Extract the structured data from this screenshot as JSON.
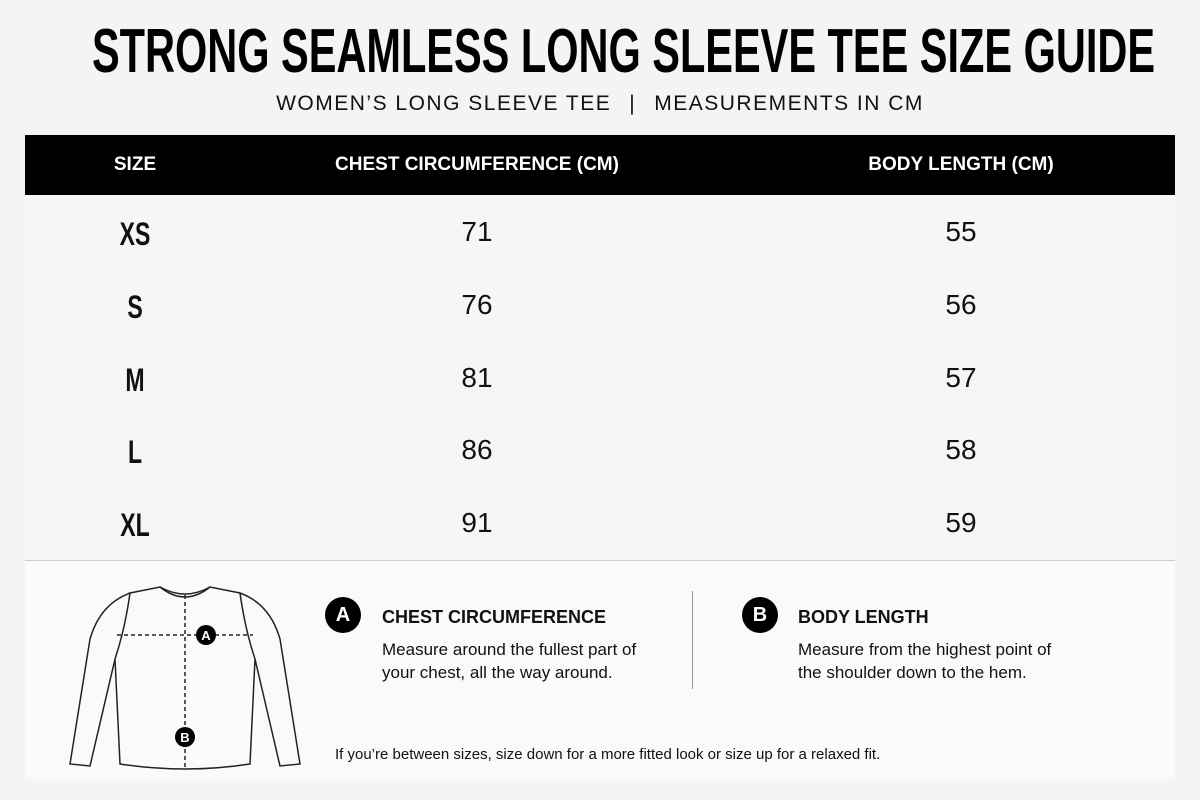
{
  "header": {
    "title": "STRONG SEAMLESS LONG SLEEVE TEE SIZE GUIDE",
    "subtitle_left": "WOMEN’S LONG SLEEVE TEE",
    "subtitle_right": "MEASUREMENTS IN CM"
  },
  "table": {
    "columns": [
      "SIZE",
      "CHEST CIRCUMFERENCE (CM)",
      "BODY LENGTH (CM)"
    ],
    "rows": [
      [
        "XS",
        71,
        55
      ],
      [
        "S",
        76,
        56
      ],
      [
        "M",
        81,
        57
      ],
      [
        "L",
        86,
        58
      ],
      [
        "XL",
        91,
        59
      ]
    ]
  },
  "measures": [
    {
      "badge": "A",
      "title": "CHEST CIRCUMFERENCE",
      "description": "Measure around the fullest part of your chest, all the way around."
    },
    {
      "badge": "B",
      "title": "BODY LENGTH",
      "description": "Measure from the highest point of the shoulder down to the hem."
    }
  ],
  "note": "If you’re between sizes, size down for a more fitted look or size up for a relaxed fit."
}
